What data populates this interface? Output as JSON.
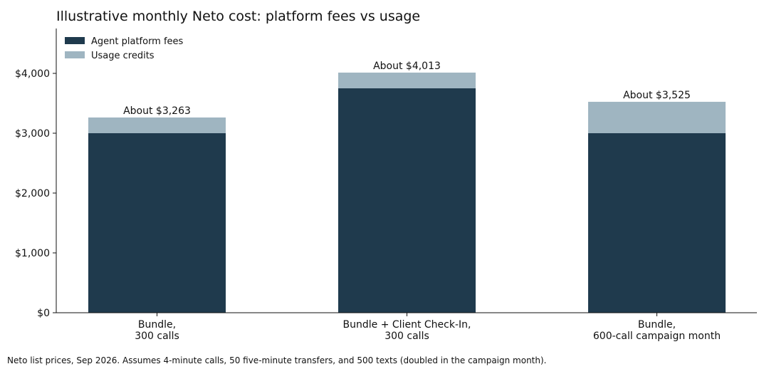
{
  "chart_data": {
    "type": "bar",
    "stacked": true,
    "title": "Illustrative monthly Neto cost: platform fees vs usage",
    "categories": [
      [
        "Bundle,",
        "300 calls"
      ],
      [
        "Bundle + Client Check-In,",
        "300 calls"
      ],
      [
        "Bundle,",
        "600-call campaign month"
      ]
    ],
    "series": [
      {
        "name": "Agent platform fees",
        "color": "#1f3a4d",
        "values": [
          3000,
          3750,
          3000
        ]
      },
      {
        "name": "Usage credits",
        "color": "#9fb5c1",
        "values": [
          263,
          263,
          525
        ]
      }
    ],
    "totals_labels": [
      "About $3,263",
      "About $4,013",
      "About $3,525"
    ],
    "ylim": [
      0,
      4750
    ],
    "yticks": [
      0,
      1000,
      2000,
      3000,
      4000
    ],
    "ytick_labels": [
      "$0",
      "$1,000",
      "$2,000",
      "$3,000",
      "$4,000"
    ],
    "xlabel": "",
    "ylabel": "",
    "grid": false,
    "legend_position": "top-left"
  },
  "footnote": "Neto list prices, Sep 2026. Assumes 4-minute calls, 50 five-minute transfers, and 500 texts (doubled in the campaign month)."
}
